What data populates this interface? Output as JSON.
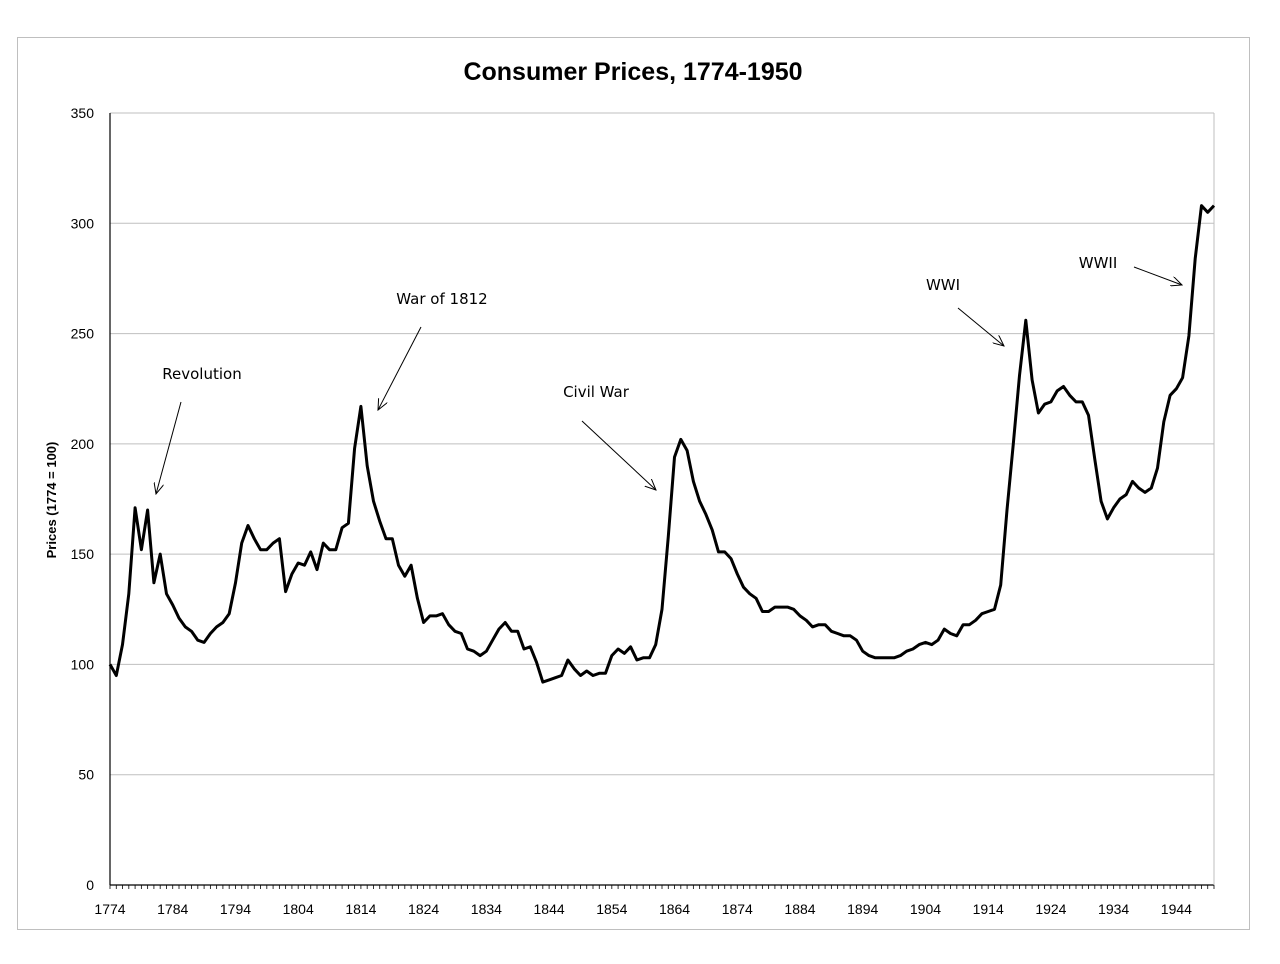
{
  "chart_data": {
    "type": "line",
    "title": "Consumer Prices, 1774-1950",
    "xlabel": "",
    "ylabel": "Prices (1774 = 100)",
    "xlim": [
      1774,
      1950
    ],
    "ylim": [
      0,
      350
    ],
    "y_ticks": [
      "0",
      "50",
      "100",
      "150",
      "200",
      "250",
      "300",
      "350"
    ],
    "x_ticks": [
      "1774",
      "1784",
      "1794",
      "1804",
      "1814",
      "1824",
      "1834",
      "1844",
      "1854",
      "1864",
      "1874",
      "1884",
      "1894",
      "1904",
      "1914",
      "1924",
      "1934",
      "1944"
    ],
    "grid": "horizontal",
    "line_color": "#000000",
    "grid_color": "#bfbfbf",
    "series": [
      {
        "x": [
          1774,
          1775,
          1776,
          1777,
          1778,
          1779,
          1780,
          1781,
          1782,
          1783,
          1784,
          1785,
          1786,
          1787,
          1788,
          1789,
          1790,
          1791,
          1792,
          1793,
          1794,
          1795,
          1796,
          1797,
          1798,
          1799,
          1800,
          1801,
          1802,
          1803,
          1804,
          1805,
          1806,
          1807,
          1808,
          1809,
          1810,
          1811,
          1812,
          1813,
          1814,
          1815,
          1816,
          1817,
          1818,
          1819,
          1820,
          1821,
          1822,
          1823,
          1824,
          1825,
          1826,
          1827,
          1828,
          1829,
          1830,
          1831,
          1832,
          1833,
          1834,
          1835,
          1836,
          1837,
          1838,
          1839,
          1840,
          1841,
          1842,
          1843,
          1844,
          1845,
          1846,
          1847,
          1848,
          1849,
          1850,
          1851,
          1852,
          1853,
          1854,
          1855,
          1856,
          1857,
          1858,
          1859,
          1860,
          1861,
          1862,
          1863,
          1864,
          1865,
          1866,
          1867,
          1868,
          1869,
          1870,
          1871,
          1872,
          1873,
          1874,
          1875,
          1876,
          1877,
          1878,
          1879,
          1880,
          1881,
          1882,
          1883,
          1884,
          1885,
          1886,
          1887,
          1888,
          1889,
          1890,
          1891,
          1892,
          1893,
          1894,
          1895,
          1896,
          1897,
          1898,
          1899,
          1900,
          1901,
          1902,
          1903,
          1904,
          1905,
          1906,
          1907,
          1908,
          1909,
          1910,
          1911,
          1912,
          1913,
          1914,
          1915,
          1916,
          1917,
          1918,
          1919,
          1920,
          1921,
          1922,
          1923,
          1924,
          1925,
          1926,
          1927,
          1928,
          1929,
          1930,
          1931,
          1932,
          1933,
          1934,
          1935,
          1936,
          1937,
          1938,
          1939,
          1940,
          1941,
          1942,
          1943,
          1944,
          1945,
          1946,
          1947,
          1948,
          1949,
          1950
        ],
        "values": [
          100,
          95,
          109,
          132,
          171,
          152,
          170,
          137,
          150,
          132,
          127,
          121,
          117,
          115,
          111,
          110,
          114,
          117,
          119,
          123,
          137,
          155,
          163,
          157,
          152,
          152,
          155,
          157,
          133,
          141,
          146,
          145,
          151,
          143,
          155,
          152,
          152,
          162,
          164,
          198,
          217,
          190,
          174,
          165,
          157,
          157,
          145,
          140,
          145,
          130,
          119,
          122,
          122,
          123,
          118,
          115,
          114,
          107,
          106,
          104,
          106,
          111,
          116,
          119,
          115,
          115,
          107,
          108,
          101,
          92,
          93,
          94,
          95,
          102,
          98,
          95,
          97,
          95,
          96,
          96,
          104,
          107,
          105,
          108,
          102,
          103,
          103,
          109,
          125,
          158,
          194,
          202,
          197,
          183,
          174,
          168,
          161,
          151,
          151,
          148,
          141,
          135,
          132,
          130,
          124,
          124,
          126,
          126,
          126,
          125,
          122,
          120,
          117,
          118,
          118,
          115,
          114,
          113,
          113,
          111,
          106,
          104,
          103,
          103,
          103,
          103,
          104,
          106,
          107,
          109,
          110,
          109,
          111,
          116,
          114,
          113,
          118,
          118,
          120,
          123,
          124,
          125,
          136,
          170,
          200,
          231,
          256,
          229,
          214,
          218,
          219,
          224,
          226,
          222,
          219,
          219,
          213,
          193,
          174,
          166,
          171,
          175,
          177,
          183,
          180,
          178,
          180,
          189,
          210,
          222,
          225,
          230,
          249,
          284,
          308,
          305,
          308
        ]
      }
    ],
    "annotations": [
      {
        "text": "Revolution",
        "x": 1782
      },
      {
        "text": "War of 1812",
        "x": 1815
      },
      {
        "text": "Civil War",
        "x": 1863
      },
      {
        "text": "WWI",
        "x": 1917
      },
      {
        "text": "WWII",
        "x": 1945
      }
    ]
  }
}
